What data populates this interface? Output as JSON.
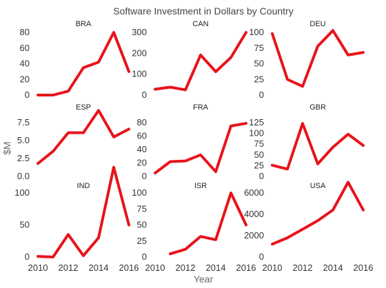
{
  "chart_data": {
    "type": "line",
    "title": "Software Investment in Dollars by Country",
    "xlabel": "Year",
    "ylabel": "$M",
    "line_color": "#e8131b",
    "x": [
      2010,
      2011,
      2012,
      2013,
      2014,
      2015,
      2016
    ],
    "x_ticks": [
      "2010",
      "2012",
      "2014",
      "2016"
    ],
    "panels": [
      {
        "title": "BRA",
        "values": [
          0,
          0,
          5,
          35,
          42,
          80,
          30
        ],
        "ylim": [
          0,
          80
        ],
        "y_ticks": [
          "0",
          "20",
          "40",
          "60",
          "80"
        ]
      },
      {
        "title": "CAN",
        "values": [
          28,
          38,
          25,
          192,
          112,
          180,
          300
        ],
        "ylim": [
          0,
          300
        ],
        "y_ticks": [
          "0",
          "100",
          "200",
          "300"
        ]
      },
      {
        "title": "DEU",
        "values": [
          98,
          25,
          14,
          78,
          103,
          64,
          68
        ],
        "ylim": [
          0,
          100
        ],
        "y_ticks": [
          "0",
          "25",
          "50",
          "75",
          "100"
        ]
      },
      {
        "title": "ESP",
        "values": [
          1.8,
          3.5,
          6.1,
          6.1,
          9.2,
          5.5,
          6.6
        ],
        "ylim": [
          0,
          7.5
        ],
        "y_ticks": [
          "0.0",
          "2.5",
          "5.0",
          "7.5"
        ]
      },
      {
        "title": "FRA",
        "values": [
          5,
          22,
          23,
          32,
          7,
          75,
          79
        ],
        "ylim": [
          0,
          80
        ],
        "y_ticks": [
          "0",
          "20",
          "40",
          "60",
          "80"
        ]
      },
      {
        "title": "GBR",
        "values": [
          26,
          17,
          123,
          29,
          68,
          98,
          72
        ],
        "ylim": [
          0,
          125
        ],
        "y_ticks": [
          "0",
          "25",
          "50",
          "75",
          "100",
          "125"
        ]
      },
      {
        "title": "IND",
        "values": [
          1,
          0,
          35,
          2,
          30,
          140,
          50
        ],
        "ylim": [
          0,
          100
        ],
        "y_ticks": [
          "0",
          "50",
          "100"
        ]
      },
      {
        "title": "ISR",
        "values": [
          null,
          5,
          12,
          32,
          27,
          100,
          50
        ],
        "ylim": [
          0,
          100
        ],
        "y_ticks": [
          "0",
          "25",
          "50",
          "75",
          "100"
        ]
      },
      {
        "title": "USA",
        "values": [
          1200,
          1800,
          2600,
          3400,
          4400,
          7000,
          4400
        ],
        "ylim": [
          0,
          6000
        ],
        "y_ticks": [
          "0",
          "2000",
          "4000",
          "6000"
        ]
      }
    ]
  }
}
